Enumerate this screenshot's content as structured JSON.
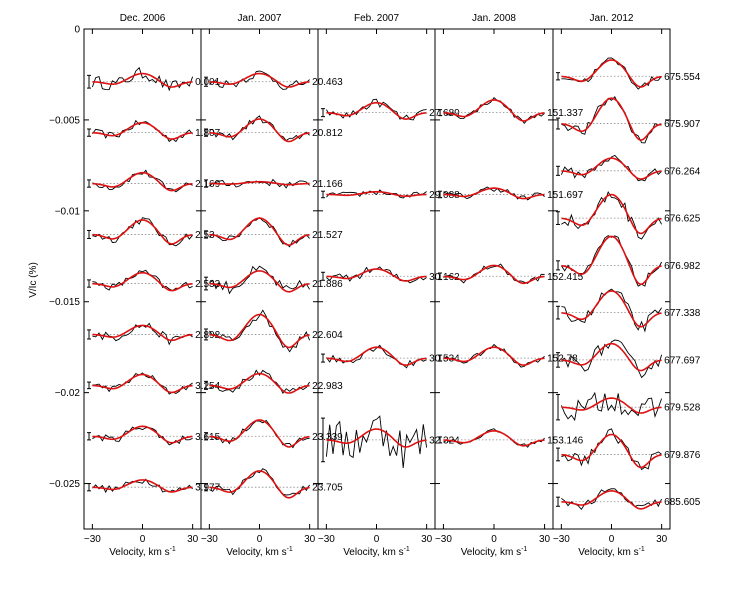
{
  "chart_data": {
    "type": "line",
    "ylabel": "V/Ic (%)",
    "xlabel": "Velocity, km s",
    "xlabel_superscript": "-1",
    "xlim": [
      -35,
      35
    ],
    "ylim": [
      -0.0275,
      0
    ],
    "xticks": [
      -30,
      0,
      30
    ],
    "yticks": [
      0,
      -0.005,
      -0.01,
      -0.015,
      -0.02,
      -0.025
    ],
    "ytick_labels": [
      "0",
      "−0.005",
      "−0.01",
      "−0.015",
      "−0.02",
      "−0.025"
    ],
    "series_legend": {
      "observed": "black",
      "model": "red"
    },
    "panels": [
      {
        "title": "Dec. 2006",
        "profiles": [
          {
            "phase": "0.001",
            "offset": -0.0029,
            "amp": 0.00045,
            "noise": 0.00035
          },
          {
            "phase": "1.807",
            "offset": -0.0057,
            "amp": 0.00055,
            "noise": 0.0002
          },
          {
            "phase": "2.169",
            "offset": -0.0085,
            "amp": 0.0006,
            "noise": 0.0002
          },
          {
            "phase": "2.53",
            "offset": -0.0113,
            "amp": 0.0008,
            "noise": 0.00022
          },
          {
            "phase": "2.533",
            "offset": -0.014,
            "amp": 0.0006,
            "noise": 0.0002
          },
          {
            "phase": "2.892",
            "offset": -0.0168,
            "amp": 0.0005,
            "noise": 0.00025
          },
          {
            "phase": "3.254",
            "offset": -0.0196,
            "amp": 0.0006,
            "noise": 0.00018
          },
          {
            "phase": "3.615",
            "offset": -0.0224,
            "amp": 0.00055,
            "noise": 0.0002
          },
          {
            "phase": "3.977",
            "offset": -0.0252,
            "amp": 0.0004,
            "noise": 0.0002
          }
        ]
      },
      {
        "title": "Jan. 2007",
        "profiles": [
          {
            "phase": "20.463",
            "offset": -0.0029,
            "amp": 0.00045,
            "noise": 0.00025
          },
          {
            "phase": "20.812",
            "offset": -0.0057,
            "amp": 0.00075,
            "noise": 0.0002
          },
          {
            "phase": "21.166",
            "offset": -0.0085,
            "amp": 0.0001,
            "noise": 0.0002
          },
          {
            "phase": "21.527",
            "offset": -0.0113,
            "amp": 0.0009,
            "noise": 0.0002
          },
          {
            "phase": "21.886",
            "offset": -0.014,
            "amp": 0.0007,
            "noise": 0.00035
          },
          {
            "phase": "22.604",
            "offset": -0.0168,
            "amp": 0.0011,
            "noise": 0.0003
          },
          {
            "phase": "22.983",
            "offset": -0.0196,
            "amp": 0.00065,
            "noise": 0.00022
          },
          {
            "phase": "23.339",
            "offset": -0.0224,
            "amp": 0.0009,
            "noise": 0.0002
          },
          {
            "phase": "23.705",
            "offset": -0.0252,
            "amp": 0.0009,
            "noise": 0.0002
          }
        ]
      },
      {
        "title": "Feb. 2007",
        "profiles": [
          {
            "phase": "27.689",
            "offset": -0.0046,
            "amp": 0.00055,
            "noise": 0.00022
          },
          {
            "phase": "29.088",
            "offset": -0.0091,
            "amp": 0.00015,
            "noise": 0.00018
          },
          {
            "phase": "30.162",
            "offset": -0.0136,
            "amp": 0.0004,
            "noise": 0.00022
          },
          {
            "phase": "30.534",
            "offset": -0.0181,
            "amp": 0.0006,
            "noise": 0.00022
          },
          {
            "phase": "32.324",
            "offset": -0.0226,
            "amp": 0.0006,
            "noise": 0.0012
          }
        ]
      },
      {
        "title": "Jan. 2008",
        "profiles": [
          {
            "phase": "151.337",
            "offset": -0.0046,
            "amp": 0.0007,
            "noise": 0.00015
          },
          {
            "phase": "151.697",
            "offset": -0.0091,
            "amp": 0.00035,
            "noise": 0.00018
          },
          {
            "phase": "152.415",
            "offset": -0.0136,
            "amp": 0.0006,
            "noise": 0.00018
          },
          {
            "phase": "152.78",
            "offset": -0.0181,
            "amp": 0.0006,
            "noise": 0.00015
          },
          {
            "phase": "153.146",
            "offset": -0.0226,
            "amp": 0.0005,
            "noise": 0.00012
          }
        ]
      },
      {
        "title": "Jan. 2012",
        "profiles": [
          {
            "phase": "675.554",
            "offset": -0.0026,
            "amp": 0.0009,
            "noise": 0.0002
          },
          {
            "phase": "675.907",
            "offset": -0.0052,
            "amp": 0.0014,
            "noise": 0.0003
          },
          {
            "phase": "676.264",
            "offset": -0.0078,
            "amp": 0.0007,
            "noise": 0.00025
          },
          {
            "phase": "676.625",
            "offset": -0.0104,
            "amp": 0.0013,
            "noise": 0.00035
          },
          {
            "phase": "676.982",
            "offset": -0.013,
            "amp": 0.0016,
            "noise": 0.00025
          },
          {
            "phase": "677.338",
            "offset": -0.0156,
            "amp": 0.0012,
            "noise": 0.00035
          },
          {
            "phase": "677.697",
            "offset": -0.0182,
            "amp": 0.0009,
            "noise": 0.0004
          },
          {
            "phase": "679.528",
            "offset": -0.0208,
            "amp": 0.0005,
            "noise": 0.0007
          },
          {
            "phase": "679.876",
            "offset": -0.0234,
            "amp": 0.0011,
            "noise": 0.00035
          },
          {
            "phase": "685.605",
            "offset": -0.026,
            "amp": 0.0006,
            "noise": 0.00025
          }
        ]
      }
    ]
  }
}
